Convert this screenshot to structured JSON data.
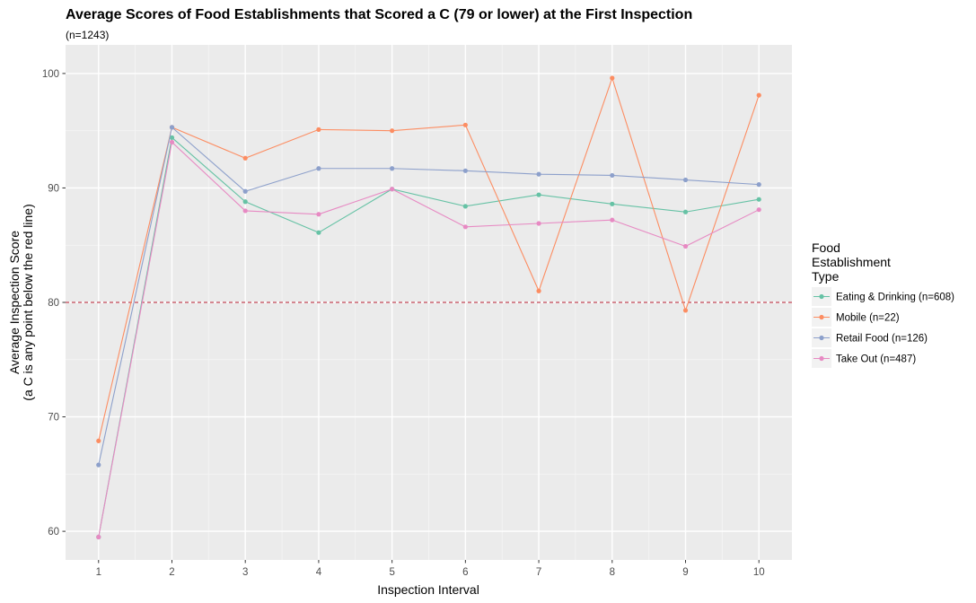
{
  "chart_data": {
    "type": "line",
    "title": "Average Scores of Food Establishments that Scored a C (79 or lower) at the First Inspection",
    "subtitle": "(n=1243)",
    "xlabel": "Inspection Interval",
    "ylabel": [
      "Average Inspection Score",
      "(a C is any point below the red line)"
    ],
    "x": [
      1,
      2,
      3,
      4,
      5,
      6,
      7,
      8,
      9,
      10
    ],
    "xlim": [
      0.55,
      10.45
    ],
    "ylim": [
      57.5,
      102.5
    ],
    "y_ticks": [
      60,
      70,
      80,
      90,
      100
    ],
    "x_ticks": [
      1,
      2,
      3,
      4,
      5,
      6,
      7,
      8,
      9,
      10
    ],
    "reference_line": {
      "y": 80,
      "color": "#b2182b",
      "style": "dashed"
    },
    "grid": true,
    "legend": {
      "title": [
        "Food",
        "Establishment",
        "Type"
      ],
      "position": "right"
    },
    "series": [
      {
        "name": "Eating & Drinking (n=608)",
        "color": "#66c2a5",
        "values": [
          59.5,
          94.4,
          88.8,
          86.1,
          89.9,
          88.4,
          89.4,
          88.6,
          87.9,
          89.0
        ]
      },
      {
        "name": "Mobile (n=22)",
        "color": "#fc8d62",
        "values": [
          67.9,
          95.3,
          92.6,
          95.1,
          95.0,
          95.5,
          81.0,
          99.6,
          79.3,
          98.1
        ]
      },
      {
        "name": "Retail Food (n=126)",
        "color": "#8da0cb",
        "values": [
          65.8,
          95.3,
          89.7,
          91.7,
          91.7,
          91.5,
          91.2,
          91.1,
          90.7,
          90.3
        ]
      },
      {
        "name": "Take Out (n=487)",
        "color": "#e78ac3",
        "values": [
          59.5,
          94.0,
          88.0,
          87.7,
          89.9,
          86.6,
          86.9,
          87.2,
          84.9,
          88.1
        ]
      }
    ]
  }
}
